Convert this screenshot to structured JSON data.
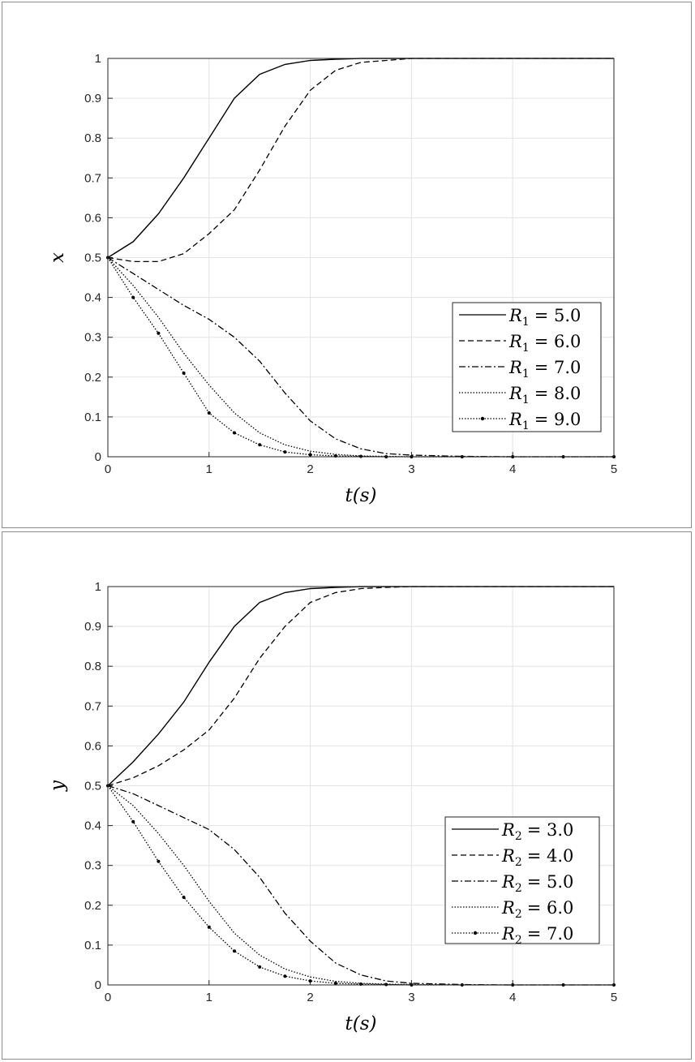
{
  "chart_data": [
    {
      "type": "line",
      "xlabel": "t(s)",
      "ylabel": "x",
      "xlim": [
        0,
        5
      ],
      "ylim": [
        0,
        1
      ],
      "xticks": [
        "0",
        "1",
        "2",
        "3",
        "4",
        "5"
      ],
      "yticks": [
        "0",
        "0.1",
        "0.2",
        "0.3",
        "0.4",
        "0.5",
        "0.6",
        "0.7",
        "0.8",
        "0.9",
        "1"
      ],
      "grid": true,
      "legend_position": "bottom-right",
      "x": [
        0,
        0.25,
        0.5,
        0.75,
        1,
        1.25,
        1.5,
        1.75,
        2,
        2.25,
        2.5,
        2.75,
        3,
        3.5,
        4,
        4.5,
        5
      ],
      "series": [
        {
          "name": "R_1 = 5.0",
          "symbol": "R",
          "subscript": "1",
          "value": "= 5.0",
          "style": "solid",
          "values": [
            0.5,
            0.54,
            0.61,
            0.7,
            0.8,
            0.9,
            0.96,
            0.985,
            0.995,
            0.998,
            1,
            1,
            1,
            1,
            1,
            1,
            1
          ]
        },
        {
          "name": "R_1 = 6.0",
          "symbol": "R",
          "subscript": "1",
          "value": "= 6.0",
          "style": "dashed",
          "values": [
            0.5,
            0.49,
            0.49,
            0.51,
            0.56,
            0.62,
            0.72,
            0.83,
            0.92,
            0.97,
            0.99,
            0.995,
            1,
            1,
            1,
            1,
            1
          ]
        },
        {
          "name": "R_1 = 7.0",
          "symbol": "R",
          "subscript": "1",
          "value": "= 7.0",
          "style": "dashdot",
          "values": [
            0.5,
            0.46,
            0.42,
            0.38,
            0.345,
            0.3,
            0.24,
            0.16,
            0.09,
            0.045,
            0.02,
            0.008,
            0.004,
            0.001,
            0,
            0,
            0
          ]
        },
        {
          "name": "R_1 = 8.0",
          "symbol": "R",
          "subscript": "1",
          "value": "= 8.0",
          "style": "dotted",
          "values": [
            0.5,
            0.43,
            0.35,
            0.26,
            0.18,
            0.11,
            0.06,
            0.03,
            0.014,
            0.006,
            0.002,
            0.001,
            0,
            0,
            0,
            0,
            0
          ]
        },
        {
          "name": "R_1 = 9.0",
          "symbol": "R",
          "subscript": "1",
          "value": "= 9.0",
          "style": "dotted-marker",
          "values": [
            0.5,
            0.4,
            0.31,
            0.21,
            0.11,
            0.06,
            0.03,
            0.012,
            0.005,
            0.002,
            0.001,
            0,
            0,
            0,
            0,
            0,
            0
          ]
        }
      ]
    },
    {
      "type": "line",
      "xlabel": "t(s)",
      "ylabel": "y",
      "xlim": [
        0,
        5
      ],
      "ylim": [
        0,
        1
      ],
      "xticks": [
        "0",
        "1",
        "2",
        "3",
        "4",
        "5"
      ],
      "yticks": [
        "0",
        "0.1",
        "0.2",
        "0.3",
        "0.4",
        "0.5",
        "0.6",
        "0.7",
        "0.8",
        "0.9",
        "1"
      ],
      "grid": true,
      "legend_position": "bottom-right",
      "x": [
        0,
        0.25,
        0.5,
        0.75,
        1,
        1.25,
        1.5,
        1.75,
        2,
        2.25,
        2.5,
        2.75,
        3,
        3.5,
        4,
        4.5,
        5
      ],
      "series": [
        {
          "name": "R_2 = 3.0",
          "symbol": "R",
          "subscript": "2",
          "value": "= 3.0",
          "style": "solid",
          "values": [
            0.5,
            0.56,
            0.63,
            0.71,
            0.81,
            0.9,
            0.96,
            0.985,
            0.995,
            0.998,
            1,
            1,
            1,
            1,
            1,
            1,
            1
          ]
        },
        {
          "name": "R_2 = 4.0",
          "symbol": "R",
          "subscript": "2",
          "value": "= 4.0",
          "style": "dashed",
          "values": [
            0.5,
            0.52,
            0.55,
            0.59,
            0.64,
            0.72,
            0.82,
            0.9,
            0.96,
            0.985,
            0.995,
            0.998,
            1,
            1,
            1,
            1,
            1
          ]
        },
        {
          "name": "R_2 = 5.0",
          "symbol": "R",
          "subscript": "2",
          "value": "= 5.0",
          "style": "dashdot",
          "values": [
            0.5,
            0.48,
            0.45,
            0.42,
            0.39,
            0.34,
            0.27,
            0.18,
            0.11,
            0.055,
            0.025,
            0.01,
            0.004,
            0.001,
            0,
            0,
            0
          ]
        },
        {
          "name": "R_2 = 6.0",
          "symbol": "R",
          "subscript": "2",
          "value": "= 6.0",
          "style": "dotted",
          "values": [
            0.5,
            0.45,
            0.38,
            0.3,
            0.21,
            0.13,
            0.075,
            0.04,
            0.02,
            0.009,
            0.004,
            0.002,
            0.001,
            0,
            0,
            0,
            0
          ]
        },
        {
          "name": "R_2 = 7.0",
          "symbol": "R",
          "subscript": "2",
          "value": "= 7.0",
          "style": "dotted-marker",
          "values": [
            0.5,
            0.41,
            0.31,
            0.22,
            0.145,
            0.085,
            0.045,
            0.022,
            0.01,
            0.004,
            0.002,
            0.001,
            0,
            0,
            0,
            0,
            0
          ]
        }
      ]
    }
  ]
}
